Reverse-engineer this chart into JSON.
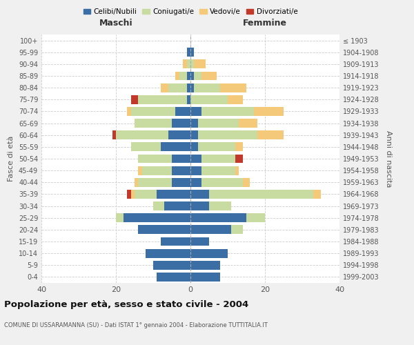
{
  "age_groups": [
    "0-4",
    "5-9",
    "10-14",
    "15-19",
    "20-24",
    "25-29",
    "30-34",
    "35-39",
    "40-44",
    "45-49",
    "50-54",
    "55-59",
    "60-64",
    "65-69",
    "70-74",
    "75-79",
    "80-84",
    "85-89",
    "90-94",
    "95-99",
    "100+"
  ],
  "birth_years": [
    "1999-2003",
    "1994-1998",
    "1989-1993",
    "1984-1988",
    "1979-1983",
    "1974-1978",
    "1969-1973",
    "1964-1968",
    "1959-1963",
    "1954-1958",
    "1949-1953",
    "1944-1948",
    "1939-1943",
    "1934-1938",
    "1929-1933",
    "1924-1928",
    "1919-1923",
    "1914-1918",
    "1909-1913",
    "1904-1908",
    "≤ 1903"
  ],
  "maschi": {
    "celibi": [
      9,
      10,
      12,
      8,
      14,
      18,
      7,
      9,
      5,
      5,
      5,
      8,
      6,
      5,
      4,
      1,
      1,
      1,
      0,
      1,
      0
    ],
    "coniugati": [
      0,
      0,
      0,
      0,
      0,
      2,
      3,
      6,
      9,
      8,
      9,
      8,
      14,
      10,
      12,
      13,
      5,
      2,
      1,
      0,
      0
    ],
    "vedovi": [
      0,
      0,
      0,
      0,
      0,
      0,
      0,
      1,
      1,
      1,
      0,
      0,
      0,
      0,
      1,
      0,
      2,
      1,
      1,
      0,
      0
    ],
    "divorziati": [
      0,
      0,
      0,
      0,
      0,
      0,
      0,
      1,
      0,
      0,
      0,
      0,
      1,
      0,
      0,
      2,
      0,
      0,
      0,
      0,
      0
    ]
  },
  "femmine": {
    "nubili": [
      8,
      8,
      10,
      5,
      11,
      15,
      5,
      5,
      3,
      3,
      3,
      2,
      2,
      2,
      3,
      0,
      1,
      1,
      0,
      1,
      0
    ],
    "coniugate": [
      0,
      0,
      0,
      0,
      3,
      5,
      6,
      28,
      11,
      9,
      9,
      10,
      16,
      11,
      14,
      10,
      7,
      2,
      1,
      0,
      0
    ],
    "vedove": [
      0,
      0,
      0,
      0,
      0,
      0,
      0,
      2,
      2,
      1,
      0,
      2,
      7,
      5,
      8,
      4,
      7,
      4,
      3,
      0,
      0
    ],
    "divorziate": [
      0,
      0,
      0,
      0,
      0,
      0,
      0,
      0,
      0,
      0,
      2,
      0,
      0,
      0,
      0,
      0,
      0,
      0,
      0,
      0,
      0
    ]
  },
  "colors": {
    "celibi": "#3a6ea5",
    "coniugati": "#c8dba0",
    "vedovi": "#f5c97a",
    "divorziati": "#c0392b"
  },
  "title": "Popolazione per età, sesso e stato civile - 2004",
  "subtitle": "COMUNE DI USSARAMANNA (SU) - Dati ISTAT 1° gennaio 2004 - Elaborazione TUTTITALIA.IT",
  "xlabel_left": "Maschi",
  "xlabel_right": "Femmine",
  "ylabel_left": "Fasce di età",
  "ylabel_right": "Anni di nascita",
  "xlim": 40,
  "legend_labels": [
    "Celibi/Nubili",
    "Coniugati/e",
    "Vedovi/e",
    "Divorziati/e"
  ],
  "background_color": "#f0f0f0",
  "plot_background": "#ffffff"
}
